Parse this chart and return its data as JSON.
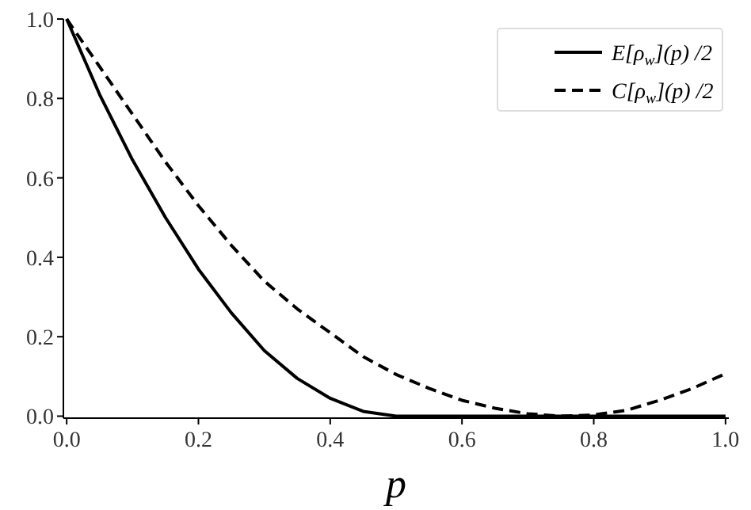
{
  "chart_data": {
    "type": "line",
    "xlabel": "p",
    "xlim": [
      -0.005,
      1.005
    ],
    "ylim": [
      -0.005,
      1.0
    ],
    "xticks": [
      {
        "value": 0,
        "label": "0.0"
      },
      0.2,
      0.4,
      0.6,
      0.8,
      {
        "value": 1,
        "label": "1.0"
      }
    ],
    "yticks": [
      {
        "value": 0,
        "label": "0.0"
      },
      0.2,
      0.4,
      0.6,
      0.8,
      {
        "value": 1,
        "label": "1.0"
      }
    ],
    "grid": false,
    "legend": "top right",
    "marker": "none",
    "series": [
      {
        "name": "E[ρ$_{w}$](p) /2",
        "color": "#000000",
        "line_style": "solid",
        "x": [
          0,
          0.05,
          0.1,
          0.15,
          0.2,
          0.25,
          0.3,
          0.35,
          0.4,
          0.45,
          0.5,
          0.6,
          0.8,
          1.0
        ],
        "values": [
          1,
          0.81,
          0.645,
          0.5,
          0.37,
          0.26,
          0.165,
          0.095,
          0.045,
          0.012,
          0,
          0,
          0,
          0
        ]
      },
      {
        "name": "C[ρ$_{w}$](p) /2",
        "color": "#000000",
        "line_style": "dashed",
        "x": [
          0,
          0.05,
          0.1,
          0.15,
          0.2,
          0.25,
          0.3,
          0.35,
          0.4,
          0.45,
          0.5,
          0.55,
          0.6,
          0.65,
          0.7,
          0.75,
          0.8,
          0.85,
          0.9,
          0.95,
          1.0
        ],
        "values": [
          1,
          0.88,
          0.76,
          0.64,
          0.53,
          0.43,
          0.34,
          0.27,
          0.21,
          0.15,
          0.105,
          0.07,
          0.04,
          0.02,
          0.006,
          0,
          0.003,
          0.015,
          0.04,
          0.07,
          0.107
        ]
      }
    ]
  }
}
